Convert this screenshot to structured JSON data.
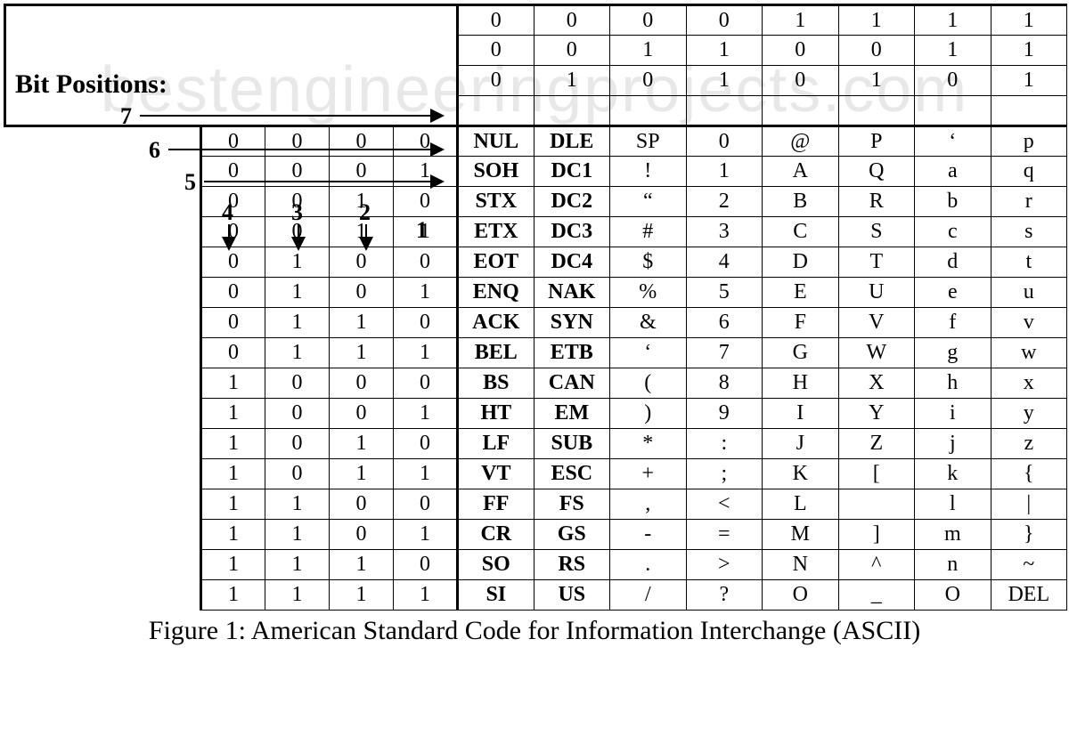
{
  "watermark": "bestengineeringprojects.com",
  "bitbox": {
    "title": "Bit Positions:",
    "labels": {
      "b7": "7",
      "b6": "6",
      "b5": "5",
      "b4": "4",
      "b3": "3",
      "b2": "2",
      "b1": "1"
    }
  },
  "header": {
    "cols": [
      {
        "b7": "0",
        "b6": "0",
        "b5": "0"
      },
      {
        "b7": "0",
        "b6": "0",
        "b5": "1"
      },
      {
        "b7": "0",
        "b6": "1",
        "b5": "0"
      },
      {
        "b7": "0",
        "b6": "1",
        "b5": "1"
      },
      {
        "b7": "1",
        "b6": "0",
        "b5": "0"
      },
      {
        "b7": "1",
        "b6": "0",
        "b5": "1"
      },
      {
        "b7": "1",
        "b6": "1",
        "b5": "0"
      },
      {
        "b7": "1",
        "b6": "1",
        "b5": "1"
      }
    ]
  },
  "rows": [
    {
      "bits": [
        "0",
        "0",
        "0",
        "0"
      ],
      "cells": [
        "NUL",
        "DLE",
        "SP",
        "0",
        "@",
        "P",
        "‘",
        "p"
      ]
    },
    {
      "bits": [
        "0",
        "0",
        "0",
        "1"
      ],
      "cells": [
        "SOH",
        "DC1",
        "!",
        "1",
        "A",
        "Q",
        "a",
        "q"
      ]
    },
    {
      "bits": [
        "0",
        "0",
        "1",
        "0"
      ],
      "cells": [
        "STX",
        "DC2",
        "“",
        "2",
        "B",
        "R",
        "b",
        "r"
      ]
    },
    {
      "bits": [
        "0",
        "0",
        "1",
        "1"
      ],
      "cells": [
        "ETX",
        "DC3",
        "#",
        "3",
        "C",
        "S",
        "c",
        "s"
      ]
    },
    {
      "bits": [
        "0",
        "1",
        "0",
        "0"
      ],
      "cells": [
        "EOT",
        "DC4",
        "$",
        "4",
        "D",
        "T",
        "d",
        "t"
      ]
    },
    {
      "bits": [
        "0",
        "1",
        "0",
        "1"
      ],
      "cells": [
        "ENQ",
        "NAK",
        "%",
        "5",
        "E",
        "U",
        "e",
        "u"
      ]
    },
    {
      "bits": [
        "0",
        "1",
        "1",
        "0"
      ],
      "cells": [
        "ACK",
        "SYN",
        "&",
        "6",
        "F",
        "V",
        "f",
        "v"
      ]
    },
    {
      "bits": [
        "0",
        "1",
        "1",
        "1"
      ],
      "cells": [
        "BEL",
        "ETB",
        "‘",
        "7",
        "G",
        "W",
        "g",
        "w"
      ]
    },
    {
      "bits": [
        "1",
        "0",
        "0",
        "0"
      ],
      "cells": [
        "BS",
        "CAN",
        "(",
        "8",
        "H",
        "X",
        "h",
        "x"
      ]
    },
    {
      "bits": [
        "1",
        "0",
        "0",
        "1"
      ],
      "cells": [
        "HT",
        "EM",
        ")",
        "9",
        "I",
        "Y",
        "i",
        "y"
      ]
    },
    {
      "bits": [
        "1",
        "0",
        "1",
        "0"
      ],
      "cells": [
        "LF",
        "SUB",
        "*",
        ":",
        "J",
        "Z",
        "j",
        "z"
      ]
    },
    {
      "bits": [
        "1",
        "0",
        "1",
        "1"
      ],
      "cells": [
        "VT",
        "ESC",
        "+",
        ";",
        "K",
        "[",
        "k",
        "{"
      ]
    },
    {
      "bits": [
        "1",
        "1",
        "0",
        "0"
      ],
      "cells": [
        "FF",
        "FS",
        ",",
        "<",
        "L",
        "",
        "l",
        "|"
      ]
    },
    {
      "bits": [
        "1",
        "1",
        "0",
        "1"
      ],
      "cells": [
        "CR",
        "GS",
        "-",
        "=",
        "M",
        "]",
        "m",
        "}"
      ]
    },
    {
      "bits": [
        "1",
        "1",
        "1",
        "0"
      ],
      "cells": [
        "SO",
        "RS",
        ".",
        ">",
        "N",
        "^",
        "n",
        "~"
      ]
    },
    {
      "bits": [
        "1",
        "1",
        "1",
        "1"
      ],
      "cells": [
        "SI",
        "US",
        "/",
        "?",
        "O",
        "_",
        "O",
        "DEL"
      ]
    }
  ],
  "boldCols": [
    0,
    1
  ],
  "caption": "Figure 1: American Standard Code for Information Interchange (ASCII)",
  "style": {
    "font": "Times New Roman",
    "cell_fontsize": 24,
    "title_fontsize": 30,
    "caption_fontsize": 30,
    "border_color": "#000000",
    "bg_color": "#ffffff",
    "watermark_color": "#e8e8e8"
  }
}
